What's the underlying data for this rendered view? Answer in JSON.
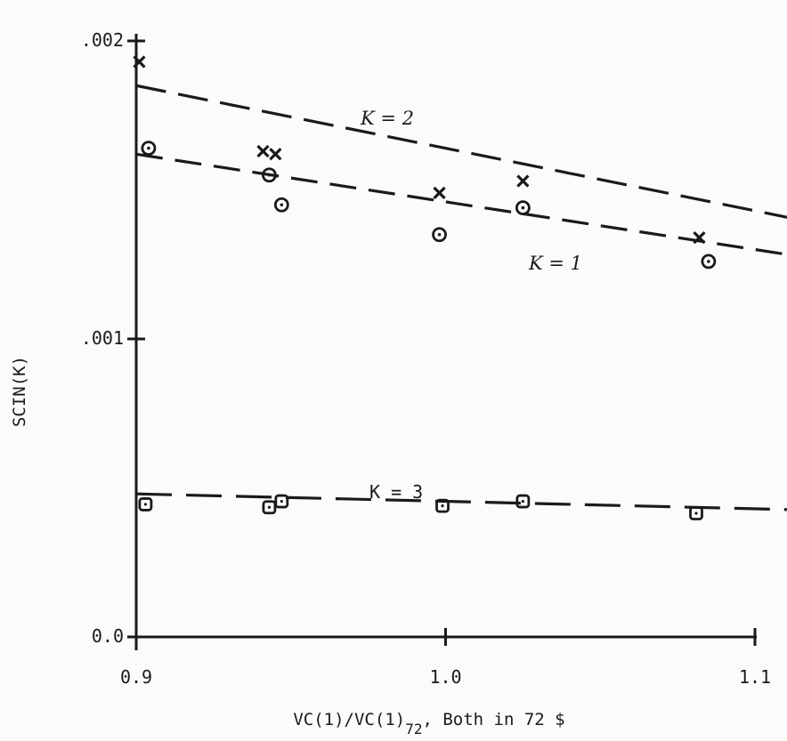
{
  "chart_data": {
    "type": "scatter",
    "title": "",
    "ylabel": "SCIN(K)",
    "xlabel_main": "VC(1)/VC(1)",
    "xlabel_sub": "72",
    "xlabel_tail": ", Both in 72 $",
    "xlim": [
      0.9,
      1.1
    ],
    "ylim": [
      0.0,
      0.002
    ],
    "x_ticks": [
      {
        "value": 0.9,
        "label": "0.9"
      },
      {
        "value": 1.0,
        "label": "1.0"
      },
      {
        "value": 1.1,
        "label": "1.1"
      }
    ],
    "y_ticks": [
      {
        "value": 0.0,
        "label": "0.0"
      },
      {
        "value": 0.001,
        "label": ".001"
      },
      {
        "value": 0.002,
        "label": ".002"
      }
    ],
    "grid": false,
    "legend": "none",
    "series": [
      {
        "name": "K = 2",
        "label_text": "K = 2",
        "marker": "x",
        "label_style": "italic",
        "line": {
          "x": [
            0.9,
            1.1
          ],
          "y": [
            0.00185,
            0.00143
          ]
        },
        "x": [
          0.901,
          0.941,
          0.945,
          0.998,
          1.025,
          1.082
        ],
        "y": [
          0.00193,
          0.00163,
          0.00162,
          0.00149,
          0.00153,
          0.00134
        ]
      },
      {
        "name": "K = 1",
        "label_text": "K = 1",
        "marker": "circle-dot",
        "label_style": "italic",
        "line": {
          "x": [
            0.9,
            1.1
          ],
          "y": [
            0.00162,
            0.0013
          ]
        },
        "x": [
          0.904,
          0.943,
          0.947,
          0.998,
          1.025,
          1.085
        ],
        "y": [
          0.00164,
          0.00155,
          0.00145,
          0.00135,
          0.00144,
          0.00126
        ]
      },
      {
        "name": "K = 3",
        "label_text": "K = 3",
        "marker": "square-dot",
        "label_style": "plain",
        "line": {
          "x": [
            0.9,
            1.1
          ],
          "y": [
            0.00048,
            0.00043
          ]
        },
        "x": [
          0.903,
          0.943,
          0.947,
          0.999,
          1.025,
          1.081
        ],
        "y": [
          0.000445,
          0.000435,
          0.000455,
          0.00044,
          0.000455,
          0.000415
        ]
      }
    ]
  }
}
